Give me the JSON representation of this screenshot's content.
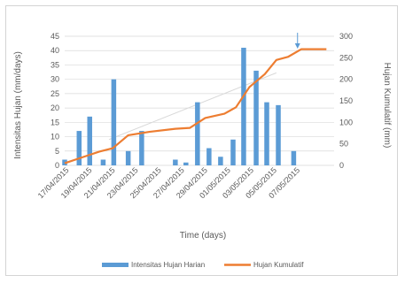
{
  "chart_data": {
    "type": "bar+line",
    "title": "",
    "categories": [
      "17/04/2015",
      "19/04/2015",
      "21/04/2015",
      "23/04/2015",
      "25/04/2015",
      "27/04/2015",
      "29/04/2015",
      "01/05/2015",
      "03/05/2015",
      "05/05/2015",
      "07/05/2015"
    ],
    "xlabel": "Time (days)",
    "ylabel_left": "Intensitas Hujan (mm/days)",
    "ylabel_right": "Hujan Kumulatif (mm)",
    "ylim_left": [
      0,
      45
    ],
    "yticks_left": [
      0,
      5,
      10,
      15,
      20,
      25,
      30,
      35,
      40,
      45
    ],
    "ylim_right": [
      0,
      300
    ],
    "yticks_right": [
      0,
      50,
      100,
      150,
      200,
      250,
      300
    ],
    "bars": {
      "name": "Intensitas Hujan Harian",
      "color": "#5b9bd5",
      "x": [
        0.0,
        0.75,
        1.3,
        2.0,
        2.55,
        3.3,
        4.0,
        5.75,
        6.3,
        6.9,
        7.5,
        8.1,
        8.75,
        9.3,
        9.95,
        10.5,
        11.1,
        11.9
      ],
      "values": [
        2,
        12,
        17,
        2,
        30,
        5,
        12,
        2,
        1,
        22,
        6,
        3,
        9,
        41,
        33,
        22,
        21,
        5
      ]
    },
    "line": {
      "name": "Hujan Kumulatif",
      "color": "#ed7d31",
      "x": [
        0.0,
        1.0,
        1.8,
        2.5,
        3.3,
        4.4,
        5.75,
        6.5,
        7.3,
        8.3,
        8.9,
        9.6,
        10.4,
        11.0,
        11.6,
        12.3,
        13.0,
        13.6
      ],
      "values": [
        5,
        20,
        32,
        40,
        70,
        78,
        85,
        87,
        110,
        120,
        135,
        182,
        212,
        245,
        252,
        270,
        270,
        270
      ]
    },
    "legend_position": "bottom",
    "colors": {
      "axis_text": "#595959",
      "gridline": "#d9d9d9",
      "trend": "#d9d9d9"
    }
  }
}
